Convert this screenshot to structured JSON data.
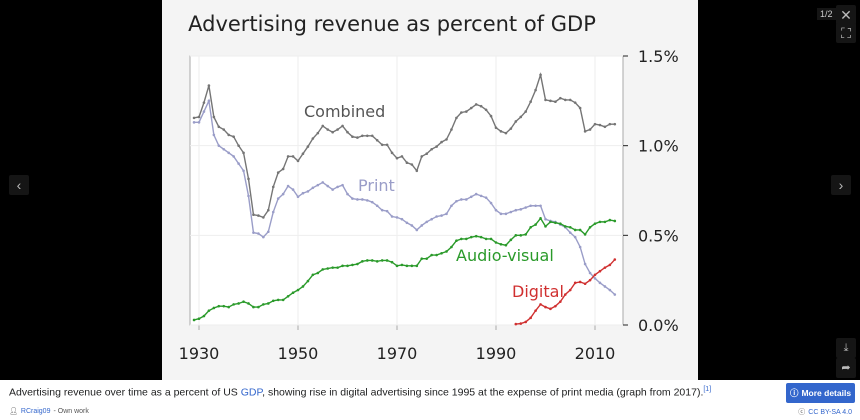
{
  "viewer": {
    "counter": "1/2",
    "close_icon": "close-icon",
    "fullscreen_icon": "fullscreen-icon",
    "prev_icon": "chevron-left-icon",
    "next_icon": "chevron-right-icon",
    "download_icon": "download-icon",
    "share_icon": "share-icon"
  },
  "caption": {
    "text_before": "Advertising revenue over time as a percent of US ",
    "link": "GDP",
    "text_after": ", showing rise in digital advertising since 1995 at the expense of print media (graph from 2017).",
    "ref": "[1]",
    "more_details": "More details",
    "author": "RCraig09",
    "author_suffix": " - Own work",
    "license": "CC BY-SA 4.0"
  },
  "colors": {
    "accent": "#3366cc",
    "combined": "#757575",
    "print": "#9a9dc8",
    "audio_visual": "#2a9a2a",
    "digital": "#d03030"
  },
  "chart_data": {
    "type": "line",
    "title": "Advertising revenue as percent of GDP",
    "xlim": [
      1928,
      2015.5
    ],
    "ylim": [
      0,
      1.5
    ],
    "x_ticks": [
      "1930",
      "1950",
      "1970",
      "1990",
      "2010"
    ],
    "y_ticks": [
      "0.0%",
      "0.5%",
      "1.0%",
      "1.5%"
    ],
    "y_axis_side": "right",
    "grid": true,
    "legend": "inline labels",
    "series": [
      {
        "name": "Combined",
        "x_start": 1929,
        "values": [
          1.155,
          1.16,
          1.24,
          1.335,
          1.16,
          1.105,
          1.09,
          1.06,
          1.05,
          1.0,
          0.96,
          0.815,
          0.615,
          0.61,
          0.6,
          0.64,
          0.77,
          0.85,
          0.87,
          0.94,
          0.94,
          0.915,
          0.955,
          0.995,
          1.04,
          1.07,
          1.11,
          1.09,
          1.075,
          1.09,
          1.11,
          1.075,
          1.05,
          1.045,
          1.055,
          1.055,
          1.055,
          1.03,
          1.005,
          1.005,
          0.96,
          0.93,
          0.94,
          0.905,
          0.895,
          0.86,
          0.94,
          0.955,
          0.98,
          0.995,
          1.02,
          1.035,
          1.09,
          1.155,
          1.185,
          1.19,
          1.21,
          1.23,
          1.22,
          1.2,
          1.165,
          1.1,
          1.08,
          1.07,
          1.095,
          1.135,
          1.16,
          1.19,
          1.245,
          1.31,
          1.395,
          1.255,
          1.25,
          1.245,
          1.265,
          1.255,
          1.255,
          1.24,
          1.21,
          1.08,
          1.09,
          1.12,
          1.115,
          1.105,
          1.12,
          1.12
        ]
      },
      {
        "name": "Print",
        "x_start": 1929,
        "values": [
          1.13,
          1.13,
          1.19,
          1.25,
          1.06,
          1.0,
          0.98,
          0.96,
          0.94,
          0.9,
          0.86,
          0.72,
          0.515,
          0.51,
          0.49,
          0.52,
          0.63,
          0.705,
          0.73,
          0.775,
          0.755,
          0.715,
          0.735,
          0.745,
          0.765,
          0.78,
          0.795,
          0.775,
          0.755,
          0.77,
          0.78,
          0.73,
          0.705,
          0.7,
          0.7,
          0.695,
          0.685,
          0.665,
          0.64,
          0.635,
          0.605,
          0.6,
          0.59,
          0.57,
          0.555,
          0.53,
          0.555,
          0.575,
          0.59,
          0.605,
          0.61,
          0.62,
          0.665,
          0.69,
          0.7,
          0.7,
          0.715,
          0.73,
          0.72,
          0.71,
          0.68,
          0.64,
          0.62,
          0.62,
          0.63,
          0.64,
          0.645,
          0.655,
          0.665,
          0.665,
          0.665,
          0.59,
          0.58,
          0.575,
          0.56,
          0.545,
          0.515,
          0.49,
          0.435,
          0.34,
          0.29,
          0.26,
          0.235,
          0.215,
          0.195,
          0.17
        ]
      },
      {
        "name": "Audio-visual",
        "x_start": 1929,
        "values": [
          0.028,
          0.035,
          0.05,
          0.08,
          0.095,
          0.105,
          0.105,
          0.1,
          0.115,
          0.12,
          0.13,
          0.12,
          0.1,
          0.1,
          0.115,
          0.12,
          0.135,
          0.14,
          0.14,
          0.16,
          0.18,
          0.195,
          0.215,
          0.245,
          0.28,
          0.29,
          0.31,
          0.315,
          0.32,
          0.32,
          0.33,
          0.33,
          0.335,
          0.34,
          0.355,
          0.36,
          0.36,
          0.355,
          0.36,
          0.36,
          0.35,
          0.33,
          0.335,
          0.33,
          0.33,
          0.33,
          0.37,
          0.37,
          0.39,
          0.39,
          0.4,
          0.41,
          0.435,
          0.47,
          0.48,
          0.48,
          0.49,
          0.495,
          0.49,
          0.48,
          0.48,
          0.46,
          0.45,
          0.445,
          0.475,
          0.5,
          0.5,
          0.505,
          0.545,
          0.56,
          0.595,
          0.55,
          0.575,
          0.57,
          0.565,
          0.55,
          0.545,
          0.53,
          0.53,
          0.505,
          0.545,
          0.565,
          0.575,
          0.575,
          0.585,
          0.58
        ]
      },
      {
        "name": "Digital",
        "x_start": 1994,
        "values": [
          0.005,
          0.008,
          0.017,
          0.04,
          0.08,
          0.115,
          0.1,
          0.09,
          0.105,
          0.13,
          0.17,
          0.195,
          0.235,
          0.24,
          0.23,
          0.25,
          0.28,
          0.3,
          0.32,
          0.335,
          0.365
        ]
      }
    ]
  }
}
